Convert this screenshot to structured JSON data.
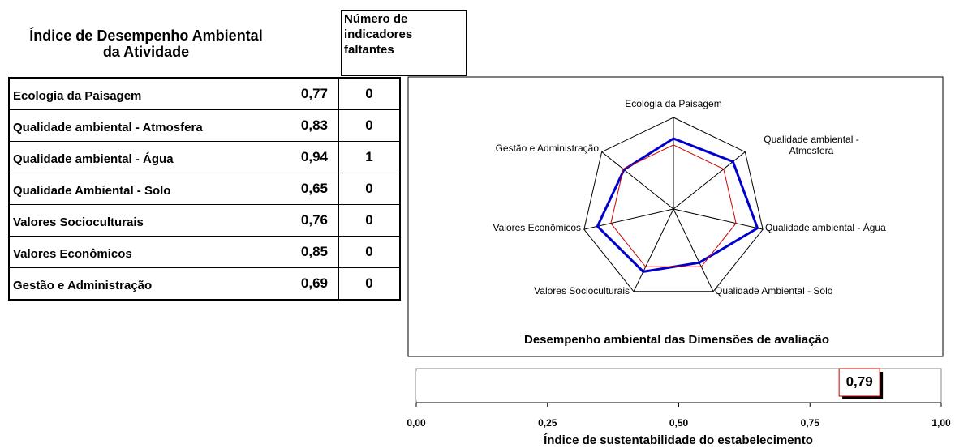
{
  "table": {
    "title": "Índice de Desempenho Ambiental da Atividade",
    "missing_header": "Número de indicadores faltantes",
    "rows": [
      [
        "Ecologia da Paisagem",
        "0,77",
        0
      ],
      [
        "Qualidade ambiental - Atmosfera",
        "0,83",
        0
      ],
      [
        "Qualidade ambiental - Água",
        "0,94",
        1
      ],
      [
        "Qualidade Ambiental - Solo",
        "0,65",
        0
      ],
      [
        "Valores Socioculturais",
        "0,76",
        0
      ],
      [
        "Valores Econômicos",
        "0,85",
        0
      ],
      [
        "Gestão e Administração",
        "0,69",
        0
      ]
    ]
  },
  "chart_data": [
    {
      "type": "radar",
      "title": "Desempenho ambiental das Dimensões de avaliação",
      "categories": [
        "Ecologia da Paisagem",
        "Qualidade ambiental - Atmosfera",
        "Qualidade ambiental - Água",
        "Qualidade Ambiental - Solo",
        "Valores Socioculturais",
        "Valores Econômicos",
        "Gestão e Administração"
      ],
      "ylim": [
        0,
        1
      ],
      "series": [
        {
          "color": "#0000cc",
          "values": [
            0.77,
            0.83,
            0.94,
            0.65,
            0.76,
            0.85,
            0.69
          ]
        },
        {
          "color": "#cc0000",
          "values": [
            0.7,
            0.7,
            0.7,
            0.7,
            0.7,
            0.7,
            0.7
          ]
        }
      ]
    },
    {
      "type": "bar",
      "orientation": "horizontal",
      "xlabel": "Índice de sustentabilidade do estabelecimento",
      "values": [
        0.79
      ],
      "value_labels": [
        "0,79"
      ],
      "xlim": [
        0,
        1
      ],
      "xticks": [
        {
          "value": 0,
          "label": "0,00"
        },
        {
          "value": 0.25,
          "label": "0,25"
        },
        {
          "value": 0.5,
          "label": "0,50"
        },
        {
          "value": 0.75,
          "label": "0,75"
        },
        {
          "value": 1,
          "label": "1,00"
        }
      ]
    }
  ]
}
